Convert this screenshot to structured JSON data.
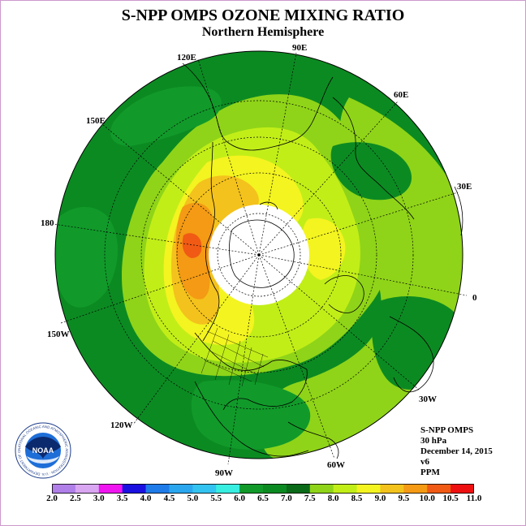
{
  "header": {
    "title": "S-NPP OMPS OZONE MIXING RATIO",
    "subtitle": "Northern Hemisphere"
  },
  "map": {
    "projection": "north polar stereographic",
    "longitude_labels": [
      "90E",
      "60E",
      "30E",
      "0",
      "30W",
      "60W",
      "90W",
      "120W",
      "150W",
      "180",
      "150E",
      "120E"
    ],
    "no_data_region": "polar night"
  },
  "info": {
    "instrument": "S-NPP OMPS",
    "level": "30 hPa",
    "date": "December 14, 2015",
    "version": "v6",
    "units": "PPM"
  },
  "colorbar": {
    "ticks": [
      "2.0",
      "2.5",
      "3.0",
      "3.5",
      "4.0",
      "4.5",
      "5.0",
      "5.5",
      "6.0",
      "6.5",
      "7.0",
      "7.5",
      "8.0",
      "8.5",
      "9.0",
      "9.5",
      "10.0",
      "10.5",
      "11.0"
    ],
    "colors": [
      "#b07fe8",
      "#d9a6f2",
      "#f015f0",
      "#1a10e0",
      "#1e7be8",
      "#2aa6ee",
      "#33c3f0",
      "#38eee0",
      "#119a2a",
      "#0c8a22",
      "#0a6a18",
      "#8fd418",
      "#c2ee18",
      "#f4f420",
      "#f4c21c",
      "#f49a14",
      "#f05a14",
      "#ee1010",
      "#8a4a2a"
    ]
  },
  "logo": {
    "text": "NOAA",
    "ring_text": "NATIONAL OCEANIC AND ATMOSPHERIC ADMINISTRATION · U.S. DEPARTMENT OF COMMERCE"
  }
}
